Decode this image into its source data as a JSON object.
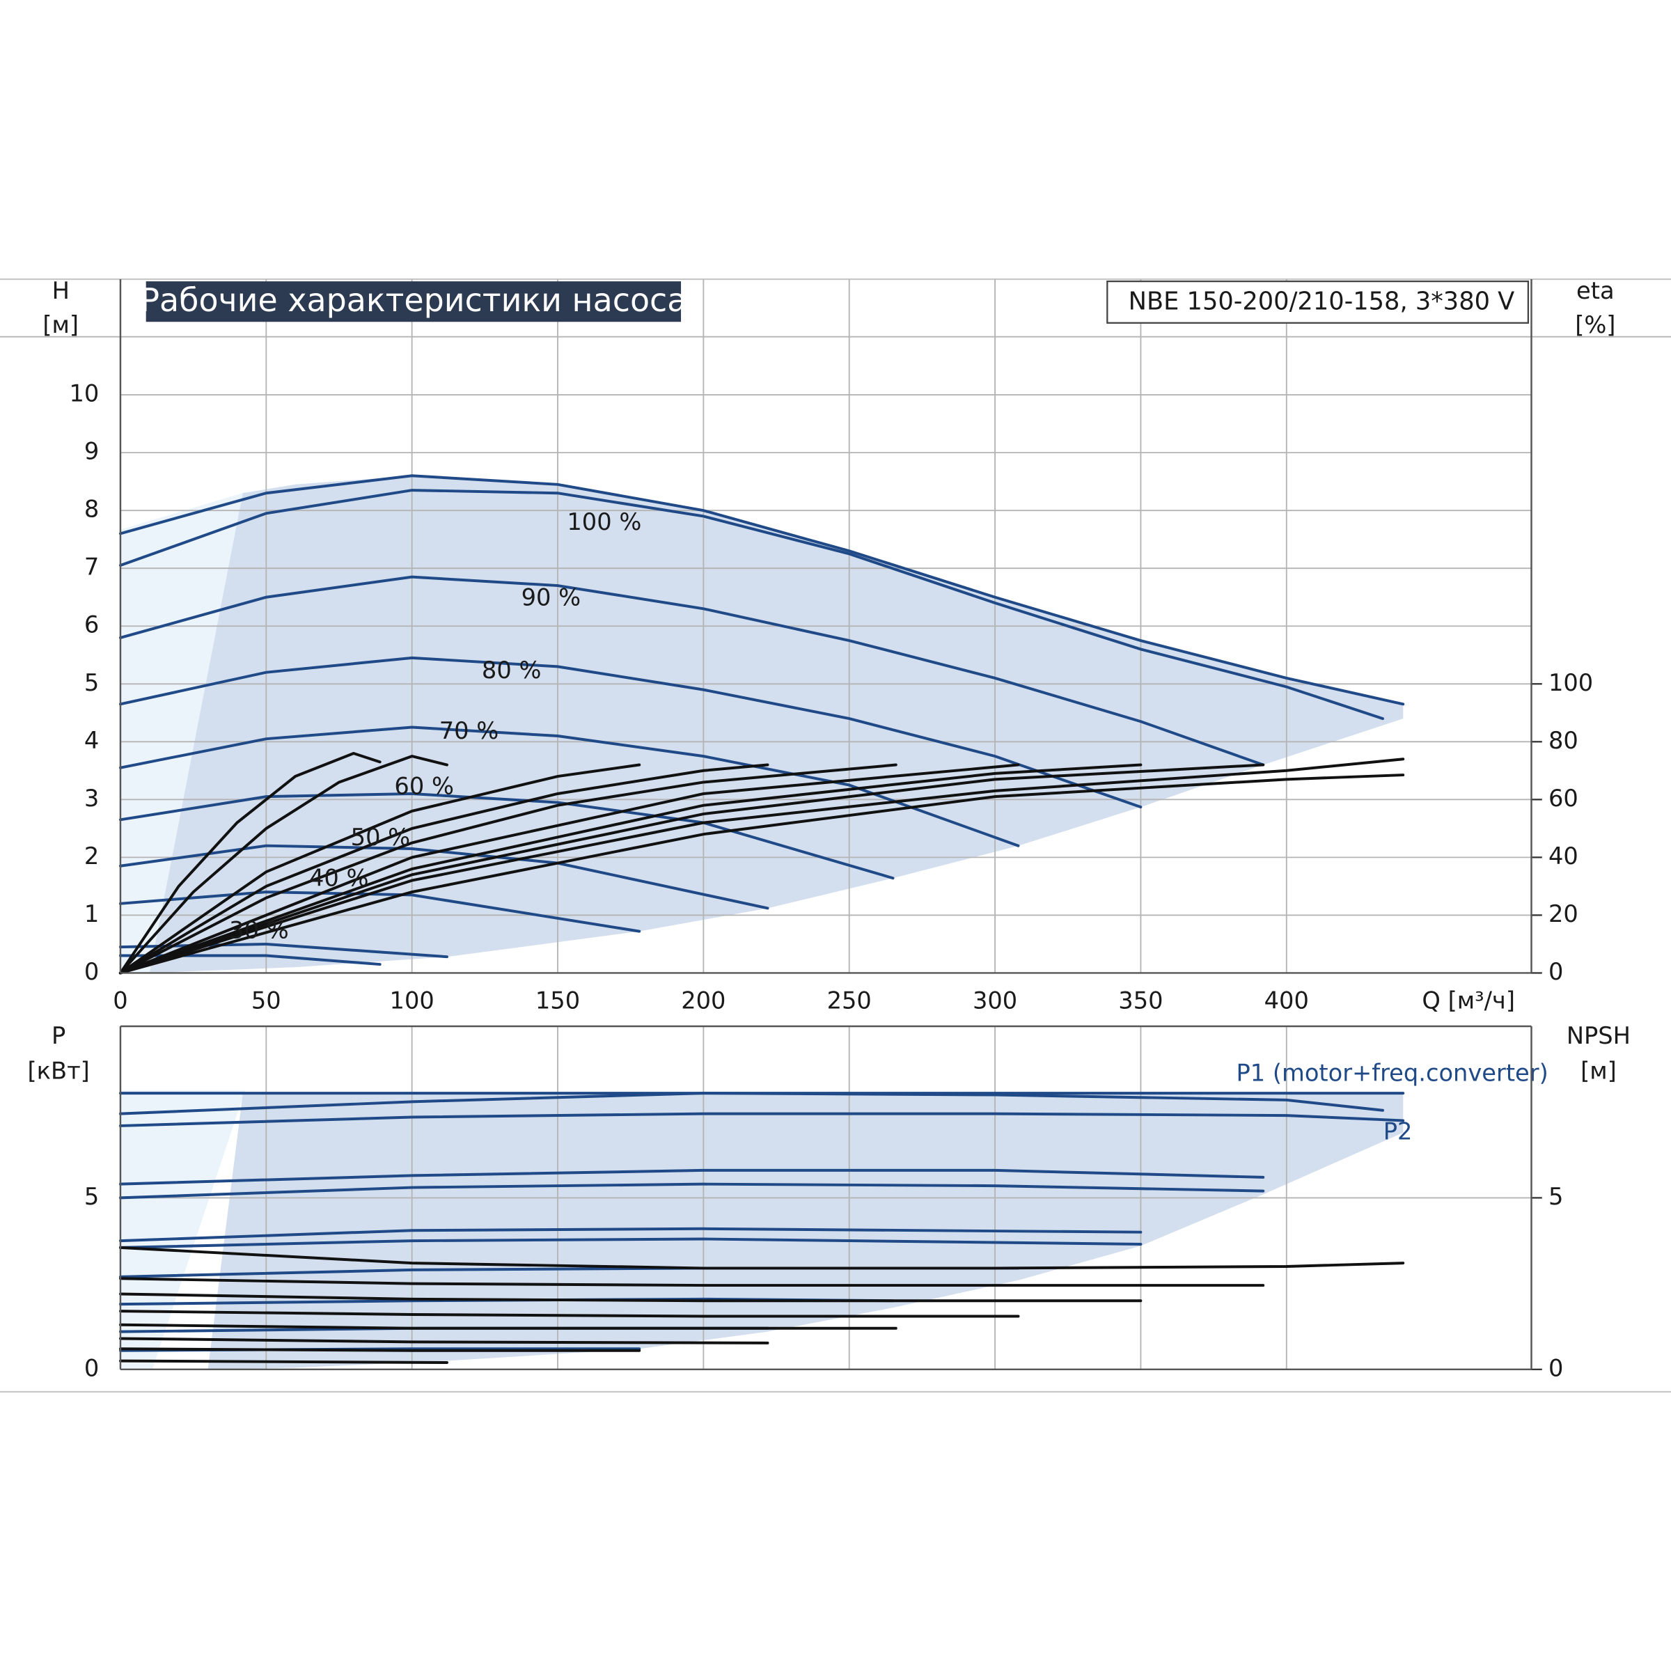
{
  "chart_data": [
    {
      "type": "line",
      "title": "Рабочие характеристики насоса",
      "subtitle": "NBE 150-200/210-158, 3*380 V",
      "ylabel": "H",
      "yunit": "[м]",
      "y2label": "eta",
      "y2unit": "[%]",
      "xlabel": "Q [м³/ч]",
      "xlim": [
        0,
        484
      ],
      "ylim": [
        0,
        12
      ],
      "y2lim": [
        0,
        240
      ],
      "xticks": [
        0,
        50,
        100,
        150,
        200,
        250,
        300,
        350,
        400
      ],
      "yticks": [
        0,
        1,
        2,
        3,
        4,
        5,
        6,
        7,
        8,
        9,
        10
      ],
      "y2ticks": [
        0,
        20,
        40,
        60,
        80,
        100
      ],
      "grid": true,
      "envelope": {
        "color": "#d3dfee",
        "x": [
          42,
          60,
          100,
          150,
          200,
          250,
          300,
          350,
          400,
          440,
          440,
          392,
          350,
          308,
          265,
          222,
          178,
          112,
          60,
          10
        ],
        "values": [
          8.3,
          8.45,
          8.6,
          8.45,
          8.0,
          7.3,
          6.5,
          5.75,
          5.1,
          4.65,
          4.4,
          3.6,
          2.87,
          2.2,
          1.64,
          1.12,
          0.72,
          0.28,
          0.1,
          0
        ]
      },
      "series": [
        {
          "color": "#1f4a87",
          "x": [
            0,
            50,
            100,
            150,
            200,
            250,
            300,
            350,
            400,
            440
          ],
          "values": [
            7.6,
            8.3,
            8.6,
            8.45,
            8.0,
            7.3,
            6.5,
            5.75,
            5.1,
            4.65
          ]
        },
        {
          "name": "100 %",
          "color": "#1f4a87",
          "x": [
            0,
            50,
            100,
            150,
            200,
            250,
            300,
            350,
            400,
            433
          ],
          "values": [
            7.05,
            7.95,
            8.35,
            8.3,
            7.9,
            7.25,
            6.4,
            5.6,
            4.95,
            4.4
          ]
        },
        {
          "name": "90 %",
          "color": "#1f4a87",
          "x": [
            0,
            50,
            100,
            150,
            200,
            250,
            300,
            350,
            392
          ],
          "values": [
            5.8,
            6.5,
            6.85,
            6.7,
            6.3,
            5.75,
            5.1,
            4.35,
            3.6
          ]
        },
        {
          "name": "80 %",
          "color": "#1f4a87",
          "x": [
            0,
            50,
            100,
            150,
            200,
            250,
            300,
            350
          ],
          "values": [
            4.65,
            5.2,
            5.45,
            5.3,
            4.9,
            4.4,
            3.75,
            2.87
          ]
        },
        {
          "name": "70 %",
          "color": "#1f4a87",
          "x": [
            0,
            50,
            100,
            150,
            200,
            250,
            308
          ],
          "values": [
            3.55,
            4.05,
            4.25,
            4.1,
            3.75,
            3.25,
            2.2
          ]
        },
        {
          "name": "60 %",
          "color": "#1f4a87",
          "x": [
            0,
            50,
            100,
            150,
            200,
            265
          ],
          "values": [
            2.65,
            3.05,
            3.1,
            2.95,
            2.6,
            1.64
          ]
        },
        {
          "name": "50 %",
          "color": "#1f4a87",
          "x": [
            0,
            50,
            100,
            150,
            222
          ],
          "values": [
            1.85,
            2.2,
            2.15,
            1.9,
            1.12
          ]
        },
        {
          "name": "40 %",
          "color": "#1f4a87",
          "x": [
            0,
            50,
            100,
            178
          ],
          "values": [
            1.2,
            1.4,
            1.35,
            0.72
          ]
        },
        {
          "name": "30 %",
          "color": "#1f4a87",
          "x": [
            0,
            50,
            112
          ],
          "values": [
            0.45,
            0.5,
            0.28
          ]
        },
        {
          "color": "#1f4a87",
          "x": [
            0,
            50,
            89
          ],
          "values": [
            0.3,
            0.3,
            0.15
          ]
        },
        {
          "color": "#111111",
          "axis": "y2",
          "x": [
            0,
            20,
            40,
            60,
            80,
            89
          ],
          "values": [
            0,
            30,
            52,
            68,
            76,
            73
          ]
        },
        {
          "color": "#111111",
          "axis": "y2",
          "x": [
            0,
            25,
            50,
            75,
            100,
            112
          ],
          "values": [
            0,
            28,
            50,
            66,
            75,
            72
          ]
        },
        {
          "color": "#111111",
          "axis": "y2",
          "x": [
            0,
            50,
            100,
            150,
            178
          ],
          "values": [
            0,
            35,
            56,
            68,
            72
          ]
        },
        {
          "color": "#111111",
          "axis": "y2",
          "x": [
            0,
            50,
            100,
            150,
            200,
            222
          ],
          "values": [
            0,
            30,
            50,
            62,
            70,
            72
          ]
        },
        {
          "color": "#111111",
          "axis": "y2",
          "x": [
            0,
            50,
            100,
            150,
            200,
            266
          ],
          "values": [
            0,
            26,
            45,
            58,
            66,
            72
          ]
        },
        {
          "color": "#111111",
          "axis": "y2",
          "x": [
            0,
            100,
            200,
            308
          ],
          "values": [
            0,
            40,
            62,
            72
          ]
        },
        {
          "color": "#111111",
          "axis": "y2",
          "x": [
            0,
            100,
            200,
            300,
            350
          ],
          "values": [
            0,
            36,
            58,
            69,
            72
          ]
        },
        {
          "color": "#111111",
          "axis": "y2",
          "x": [
            0,
            100,
            200,
            300,
            392
          ],
          "values": [
            0,
            34,
            55,
            67,
            72
          ]
        },
        {
          "color": "#111111",
          "axis": "y2",
          "x": [
            0,
            100,
            200,
            300,
            400,
            440
          ],
          "values": [
            0,
            32,
            52,
            63,
            70,
            74
          ]
        },
        {
          "color": "#111111",
          "axis": "y2",
          "x": [
            0,
            100,
            200,
            300,
            400,
            440
          ],
          "values": [
            0,
            28,
            48,
            61,
            67,
            68.5
          ]
        }
      ]
    },
    {
      "type": "line",
      "ylabel": "P",
      "yunit": "[кВт]",
      "y2label": "NPSH",
      "y2unit": "[м]",
      "xlim": [
        0,
        484
      ],
      "ylim": [
        0,
        10
      ],
      "y2lim": [
        0,
        10
      ],
      "yticks": [
        0,
        5
      ],
      "y2ticks": [
        0,
        5
      ],
      "grid": true,
      "envelope": {
        "color": "#d3dfee",
        "x": [
          42,
          440,
          440,
          392,
          350,
          308,
          265,
          222,
          178,
          112,
          60,
          30
        ],
        "values": [
          8.05,
          8.05,
          6.9,
          5.1,
          3.6,
          2.6,
          1.8,
          1.1,
          0.6,
          0.25,
          0.05,
          0
        ]
      },
      "series": [
        {
          "color": "#1f4a87",
          "x": [
            0,
            100,
            200,
            300,
            400,
            440
          ],
          "values": [
            8.05,
            8.05,
            8.05,
            8.05,
            8.05,
            8.05
          ]
        },
        {
          "name": "P1 (motor+freq.converter)",
          "color": "#1f4a87",
          "x": [
            0,
            100,
            200,
            300,
            400,
            433
          ],
          "values": [
            7.45,
            7.8,
            8.05,
            8.0,
            7.85,
            7.55
          ]
        },
        {
          "name": "P2",
          "color": "#1f4a87",
          "x": [
            0,
            100,
            200,
            300,
            400,
            440
          ],
          "values": [
            7.1,
            7.35,
            7.45,
            7.45,
            7.4,
            7.25
          ]
        },
        {
          "color": "#1f4a87",
          "x": [
            0,
            100,
            200,
            300,
            392
          ],
          "values": [
            5.4,
            5.65,
            5.8,
            5.8,
            5.6
          ]
        },
        {
          "color": "#1f4a87",
          "x": [
            0,
            100,
            200,
            300,
            392
          ],
          "values": [
            5.0,
            5.3,
            5.4,
            5.35,
            5.2
          ]
        },
        {
          "color": "#1f4a87",
          "x": [
            0,
            100,
            200,
            350
          ],
          "values": [
            3.75,
            4.05,
            4.1,
            4.0
          ]
        },
        {
          "color": "#1f4a87",
          "x": [
            0,
            100,
            200,
            350
          ],
          "values": [
            3.55,
            3.75,
            3.8,
            3.65
          ]
        },
        {
          "color": "#1f4a87",
          "x": [
            0,
            100,
            200,
            308
          ],
          "values": [
            2.7,
            2.9,
            2.95,
            2.95
          ]
        },
        {
          "color": "#1f4a87",
          "x": [
            0,
            100,
            200,
            265
          ],
          "values": [
            1.9,
            2.0,
            2.05,
            2.0
          ]
        },
        {
          "color": "#1f4a87",
          "x": [
            0,
            100,
            222
          ],
          "values": [
            1.1,
            1.2,
            1.2
          ]
        },
        {
          "color": "#1f4a87",
          "x": [
            0,
            100,
            178
          ],
          "values": [
            0.55,
            0.6,
            0.6
          ]
        },
        {
          "color": "#111111",
          "axis": "y2",
          "x": [
            0,
            100,
            200,
            300,
            400,
            440
          ],
          "values": [
            3.55,
            3.1,
            2.95,
            2.95,
            3.0,
            3.1
          ]
        },
        {
          "color": "#111111",
          "axis": "y2",
          "x": [
            0,
            100,
            200,
            300,
            392
          ],
          "values": [
            2.65,
            2.5,
            2.45,
            2.45,
            2.45
          ]
        },
        {
          "color": "#111111",
          "axis": "y2",
          "x": [
            0,
            100,
            200,
            350
          ],
          "values": [
            2.2,
            2.05,
            2.0,
            2.0
          ]
        },
        {
          "color": "#111111",
          "axis": "y2",
          "x": [
            0,
            100,
            200,
            308
          ],
          "values": [
            1.7,
            1.6,
            1.55,
            1.55
          ]
        },
        {
          "color": "#111111",
          "axis": "y2",
          "x": [
            0,
            100,
            266
          ],
          "values": [
            1.3,
            1.2,
            1.2
          ]
        },
        {
          "color": "#111111",
          "axis": "y2",
          "x": [
            0,
            100,
            222
          ],
          "values": [
            0.9,
            0.8,
            0.77
          ]
        },
        {
          "color": "#111111",
          "axis": "y2",
          "x": [
            0,
            100,
            178
          ],
          "values": [
            0.6,
            0.55,
            0.55
          ]
        },
        {
          "color": "#111111",
          "axis": "y2",
          "x": [
            0,
            112
          ],
          "values": [
            0.25,
            0.2
          ]
        }
      ]
    }
  ]
}
